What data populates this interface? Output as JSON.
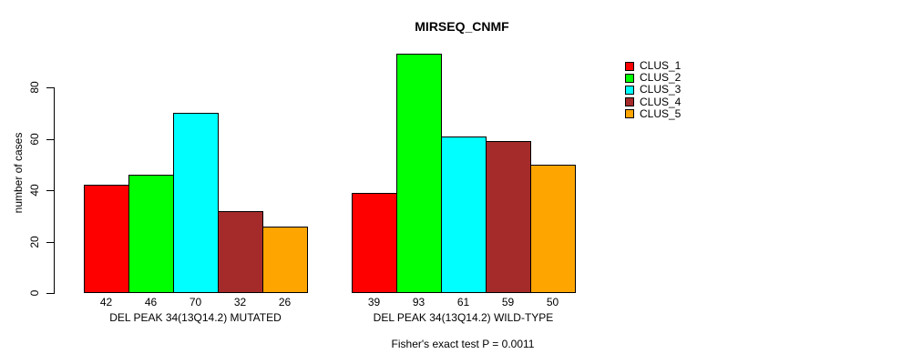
{
  "chart_data": {
    "type": "bar",
    "title": "MIRSEQ_CNMF",
    "ylabel": "number of cases",
    "xlabel": "",
    "ylim": [
      0,
      80
    ],
    "yticks": [
      0,
      20,
      40,
      60,
      80
    ],
    "grid": false,
    "bar_value_labels_shown": true,
    "legend_position": "right",
    "legend": [
      "CLUS_1",
      "CLUS_2",
      "CLUS_3",
      "CLUS_4",
      "CLUS_5"
    ],
    "colors": [
      "#FF0000",
      "#00FF00",
      "#00FFFF",
      "#A52A2A",
      "#FFA500"
    ],
    "bar_border_color": "#000000",
    "categories": [
      "DEL PEAK 34(13Q14.2) MUTATED",
      "DEL PEAK 34(13Q14.2) WILD-TYPE"
    ],
    "groups": [
      {
        "label": "DEL PEAK 34(13Q14.2) MUTATED",
        "values": [
          42,
          46,
          70,
          32,
          26
        ]
      },
      {
        "label": "DEL PEAK 34(13Q14.2) WILD-TYPE",
        "values": [
          39,
          93,
          61,
          59,
          50
        ]
      }
    ],
    "series": [
      {
        "name": "CLUS_1",
        "color": "#FF0000",
        "values": [
          42,
          39
        ]
      },
      {
        "name": "CLUS_2",
        "color": "#00FF00",
        "values": [
          46,
          93
        ]
      },
      {
        "name": "CLUS_3",
        "color": "#00FFFF",
        "values": [
          70,
          61
        ]
      },
      {
        "name": "CLUS_4",
        "color": "#A52A2A",
        "values": [
          32,
          59
        ]
      },
      {
        "name": "CLUS_5",
        "color": "#FFA500",
        "values": [
          26,
          50
        ]
      }
    ],
    "annotation": "Fisher's exact test P = 0.0011"
  }
}
